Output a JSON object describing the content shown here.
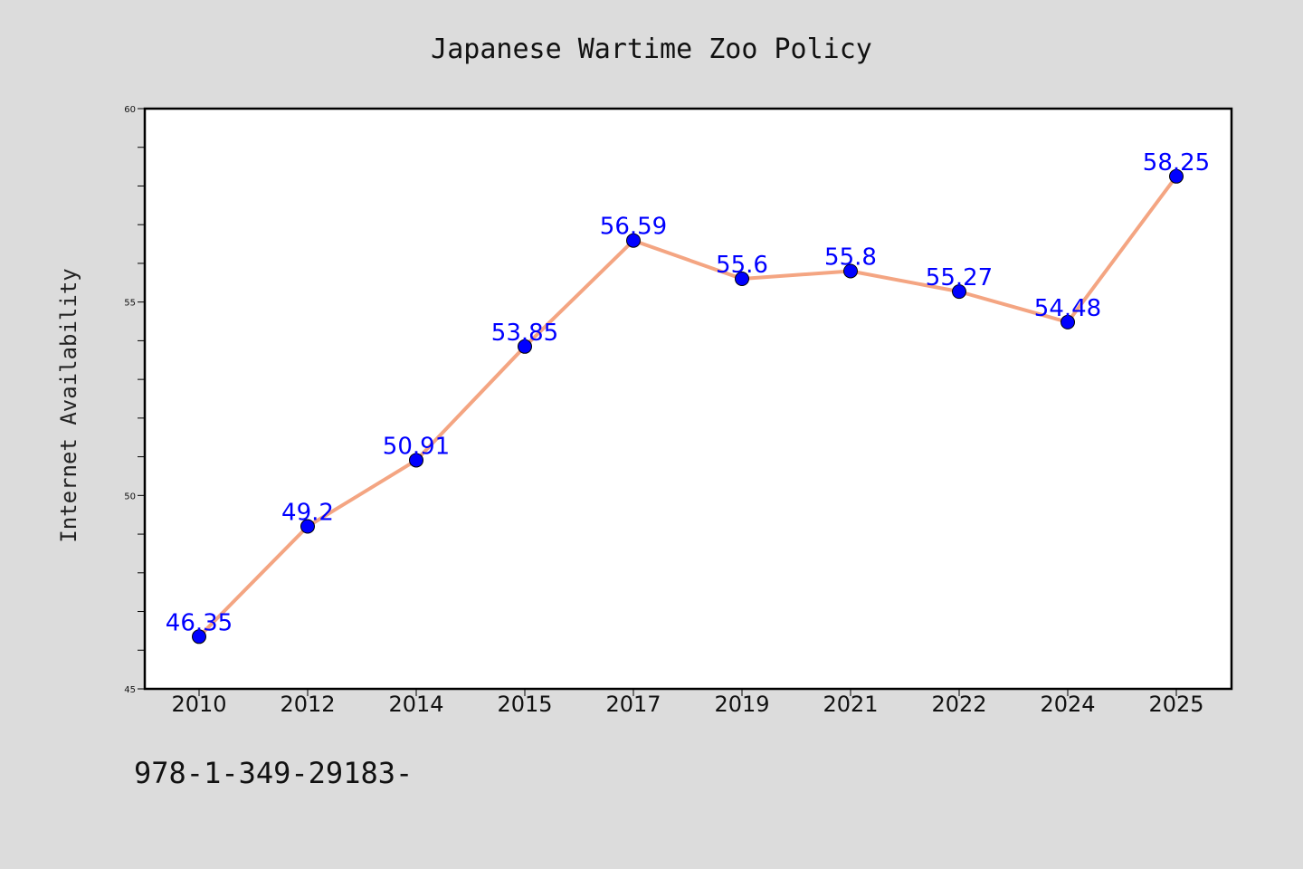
{
  "chart_data": {
    "type": "line",
    "title": "Japanese Wartime Zoo Policy",
    "xlabel": "",
    "ylabel": "Internet Availability",
    "categories": [
      "2010",
      "2012",
      "2014",
      "2015",
      "2017",
      "2019",
      "2021",
      "2022",
      "2024",
      "2025"
    ],
    "series": [
      {
        "values": [
          46.35,
          49.2,
          50.91,
          53.85,
          56.59,
          55.6,
          55.8,
          55.27,
          54.48,
          58.25
        ]
      }
    ],
    "data_labels": [
      "46.35",
      "49.2",
      "50.91",
      "53.85",
      "56.59",
      "55.6",
      "55.8",
      "55.27",
      "54.48",
      "58.25"
    ],
    "ylim": [
      45,
      60
    ],
    "yticks": [
      "45",
      "50",
      "55",
      "60"
    ],
    "grid": false,
    "legend": "none",
    "colors": {
      "line": "#f4a582",
      "marker": "#0000ff",
      "label": "#0000ff",
      "background": "#dcdcdc",
      "plot_background": "#ffffff"
    }
  },
  "footer": {
    "text": "978-1-349-29183-"
  }
}
